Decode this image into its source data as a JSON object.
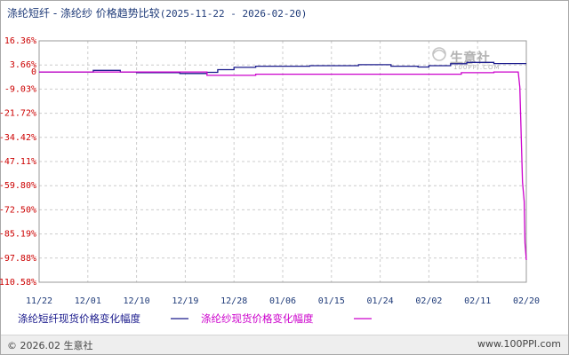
{
  "title": {
    "main": "涤纶短纤 - 涤纶纱 价格趋势比较",
    "range": "(2025-11-22 - 2026-02-20)"
  },
  "footer": {
    "copyright": "© 2026.02 生意社",
    "url": "www.100PPI.com"
  },
  "watermark": {
    "brand": "生意社",
    "url": "100PPI.COM"
  },
  "chart_data": {
    "type": "line",
    "x_ticks": [
      "11/22",
      "12/01",
      "12/10",
      "12/19",
      "12/28",
      "01/06",
      "01/15",
      "01/24",
      "02/02",
      "02/11",
      "02/20"
    ],
    "y_ticks": [
      "16.36%",
      "3.66%",
      "-9.03%",
      "-21.72%",
      "-34.42%",
      "-47.11%",
      "-59.80%",
      "-72.50%",
      "-85.19%",
      "-97.88%",
      "-110.58%"
    ],
    "y_zero_label": "0",
    "ylim": [
      -110.58,
      16.36
    ],
    "xlim": [
      0,
      90
    ],
    "grid": true,
    "legend_position": "bottom",
    "series": [
      {
        "name": "涤纶短纤现货价格变化幅度",
        "color": "#1a1a8c",
        "points": [
          [
            0,
            0
          ],
          [
            10,
            0
          ],
          [
            10,
            0.8
          ],
          [
            15,
            0.8
          ],
          [
            15,
            0
          ],
          [
            18,
            0
          ],
          [
            18,
            -0.4
          ],
          [
            26,
            -0.4
          ],
          [
            26,
            -0.8
          ],
          [
            31,
            -0.8
          ],
          [
            31,
            -0.2
          ],
          [
            33,
            -0.2
          ],
          [
            33,
            1.2
          ],
          [
            36,
            1.2
          ],
          [
            36,
            2.4
          ],
          [
            40,
            2.4
          ],
          [
            40,
            3.0
          ],
          [
            50,
            3.0
          ],
          [
            50,
            3.3
          ],
          [
            59,
            3.3
          ],
          [
            59,
            3.8
          ],
          [
            65,
            3.8
          ],
          [
            65,
            3.0
          ],
          [
            70,
            3.0
          ],
          [
            70,
            2.6
          ],
          [
            72,
            2.6
          ],
          [
            72,
            3.3
          ],
          [
            76,
            3.3
          ],
          [
            76,
            4.3
          ],
          [
            79,
            4.3
          ],
          [
            79,
            5.0
          ],
          [
            84,
            5.0
          ],
          [
            84,
            4.4
          ],
          [
            90,
            4.4
          ]
        ]
      },
      {
        "name": "涤纶纱现货价格变化幅度",
        "color": "#cc00cc",
        "points": [
          [
            0,
            0
          ],
          [
            31,
            0
          ],
          [
            31,
            -1.8
          ],
          [
            40,
            -1.8
          ],
          [
            40,
            -1.2
          ],
          [
            78,
            -1.2
          ],
          [
            78,
            -0.4
          ],
          [
            84,
            -0.4
          ],
          [
            84,
            0
          ],
          [
            88.5,
            0
          ],
          [
            88.8,
            -8
          ],
          [
            89.3,
            -58
          ],
          [
            89.6,
            -68
          ],
          [
            89.75,
            -90
          ],
          [
            90,
            -98.9
          ]
        ]
      }
    ]
  }
}
